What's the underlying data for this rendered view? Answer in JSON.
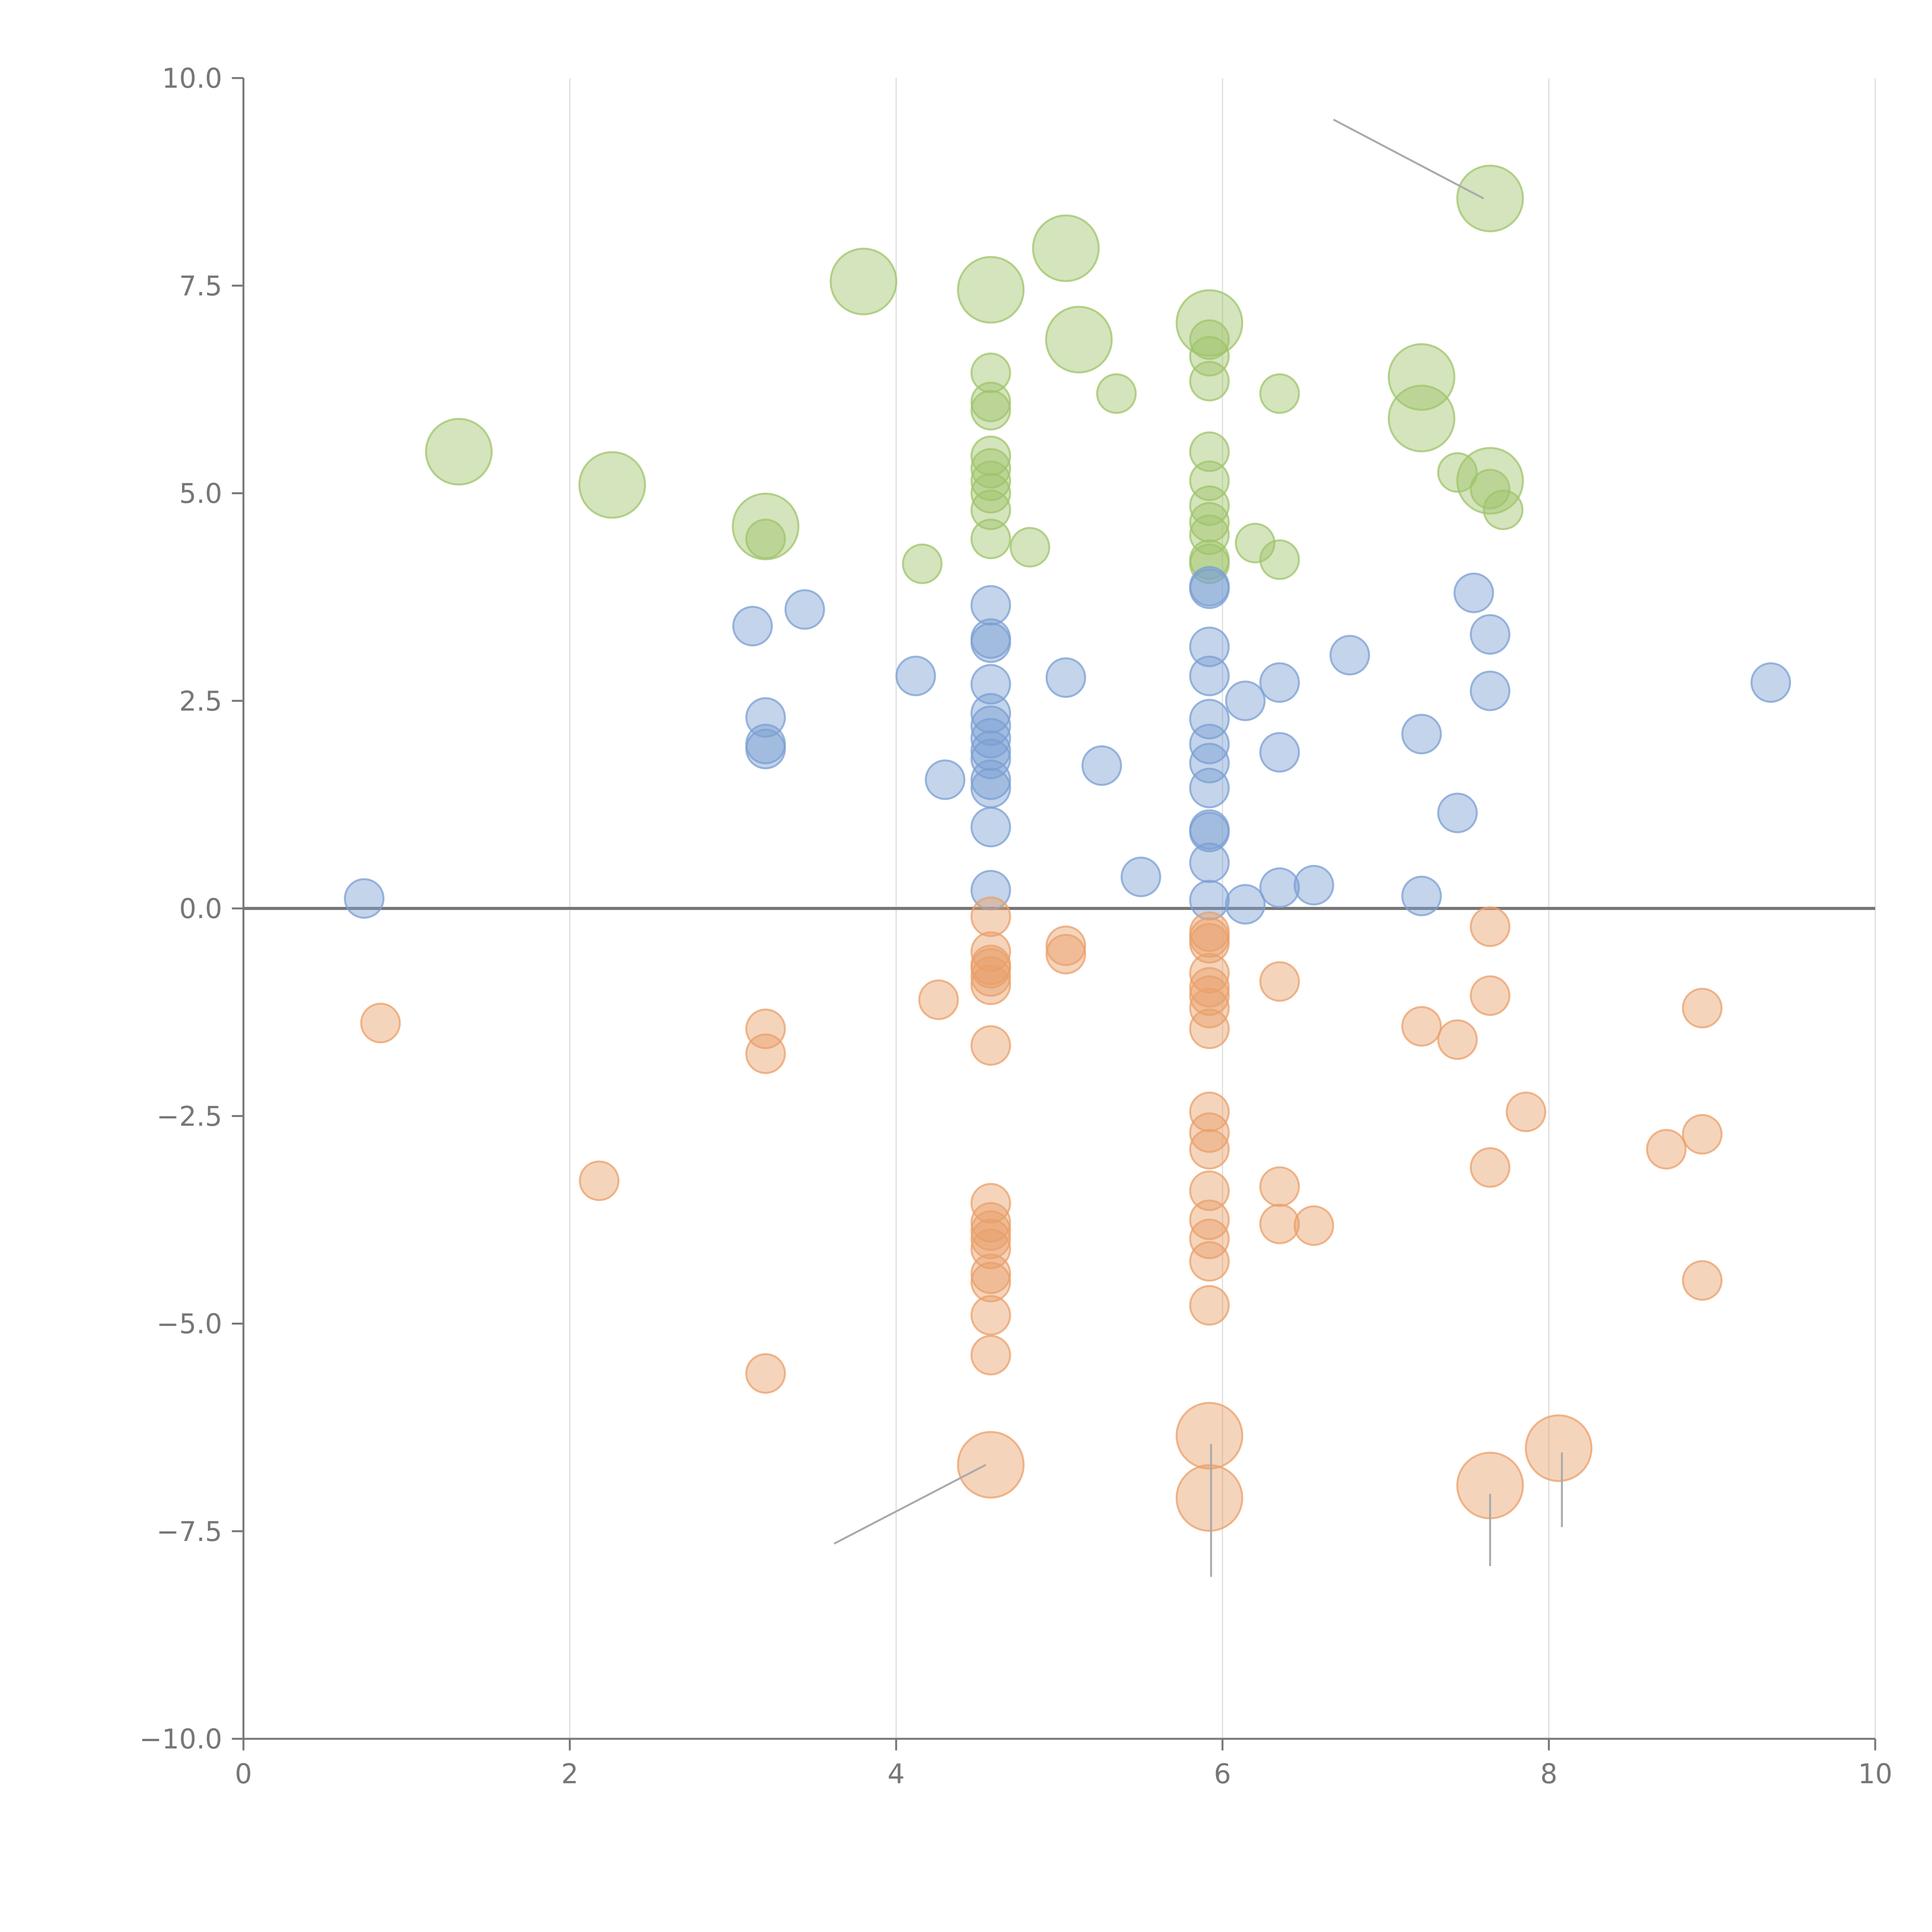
{
  "chart_data": {
    "type": "scatter",
    "title": "",
    "xlabel": "",
    "ylabel": "",
    "xlim": [
      0,
      10
    ],
    "ylim": [
      -10,
      10
    ],
    "x_ticks": [
      "0",
      "2",
      "4",
      "6",
      "8",
      "10"
    ],
    "y_ticks": [
      "10.0",
      "7.5",
      "5.0",
      "2.5",
      "0.0",
      "−2.5",
      "−5.0",
      "−7.5",
      "−10.0"
    ],
    "x_tick_values": [
      0,
      2,
      4,
      6,
      8,
      10
    ],
    "y_tick_values": [
      10,
      7.5,
      5,
      2.5,
      0,
      -2.5,
      -5,
      -7.5,
      -10
    ],
    "grid_x": true,
    "grid_y": false,
    "zero_line": true,
    "series": [
      {
        "name": "green",
        "color": "#9fc46a",
        "points": [
          {
            "x": 1.32,
            "y": 5.5,
            "size": 2
          },
          {
            "x": 2.26,
            "y": 5.1,
            "size": 2
          },
          {
            "x": 3.2,
            "y": 4.6,
            "size": 2
          },
          {
            "x": 3.8,
            "y": 7.55,
            "size": 2
          },
          {
            "x": 4.58,
            "y": 7.45,
            "size": 2
          },
          {
            "x": 5.04,
            "y": 7.95,
            "size": 2
          },
          {
            "x": 5.12,
            "y": 6.85,
            "size": 2
          },
          {
            "x": 5.92,
            "y": 7.05,
            "size": 2
          },
          {
            "x": 7.64,
            "y": 8.55,
            "size": 2
          },
          {
            "x": 7.22,
            "y": 6.4,
            "size": 2
          },
          {
            "x": 7.22,
            "y": 5.9,
            "size": 2
          },
          {
            "x": 7.64,
            "y": 5.15,
            "size": 2
          },
          {
            "x": 3.2,
            "y": 4.45,
            "size": 1
          },
          {
            "x": 4.16,
            "y": 4.15,
            "size": 1
          },
          {
            "x": 4.82,
            "y": 4.35,
            "size": 1
          },
          {
            "x": 4.58,
            "y": 6.45,
            "size": 1
          },
          {
            "x": 4.58,
            "y": 6.1,
            "size": 1
          },
          {
            "x": 4.58,
            "y": 6.0,
            "size": 1
          },
          {
            "x": 4.58,
            "y": 5.45,
            "size": 1
          },
          {
            "x": 4.58,
            "y": 5.3,
            "size": 1
          },
          {
            "x": 4.58,
            "y": 5.15,
            "size": 1
          },
          {
            "x": 4.58,
            "y": 5.0,
            "size": 1
          },
          {
            "x": 4.58,
            "y": 4.8,
            "size": 1
          },
          {
            "x": 4.58,
            "y": 4.45,
            "size": 1
          },
          {
            "x": 5.35,
            "y": 6.2,
            "size": 1
          },
          {
            "x": 5.92,
            "y": 6.85,
            "size": 1
          },
          {
            "x": 5.92,
            "y": 6.65,
            "size": 1
          },
          {
            "x": 5.92,
            "y": 6.35,
            "size": 1
          },
          {
            "x": 5.92,
            "y": 5.5,
            "size": 1
          },
          {
            "x": 5.92,
            "y": 5.15,
            "size": 1
          },
          {
            "x": 5.92,
            "y": 4.85,
            "size": 1
          },
          {
            "x": 5.92,
            "y": 4.65,
            "size": 1
          },
          {
            "x": 5.92,
            "y": 4.5,
            "size": 1
          },
          {
            "x": 5.92,
            "y": 4.2,
            "size": 1
          },
          {
            "x": 5.92,
            "y": 4.15,
            "size": 1
          },
          {
            "x": 6.2,
            "y": 4.4,
            "size": 1
          },
          {
            "x": 6.35,
            "y": 6.2,
            "size": 1
          },
          {
            "x": 6.35,
            "y": 4.2,
            "size": 1
          },
          {
            "x": 7.44,
            "y": 5.25,
            "size": 1
          },
          {
            "x": 7.64,
            "y": 5.05,
            "size": 1
          },
          {
            "x": 7.72,
            "y": 4.8,
            "size": 1
          }
        ]
      },
      {
        "name": "blue",
        "color": "#7b9fd3",
        "points": [
          {
            "x": 0.74,
            "y": 0.12,
            "size": 1
          },
          {
            "x": 3.12,
            "y": 3.4,
            "size": 1
          },
          {
            "x": 3.44,
            "y": 3.6,
            "size": 1
          },
          {
            "x": 3.2,
            "y": 2.3,
            "size": 1
          },
          {
            "x": 3.2,
            "y": 1.98,
            "size": 1
          },
          {
            "x": 3.2,
            "y": 1.92,
            "size": 1
          },
          {
            "x": 4.12,
            "y": 2.8,
            "size": 1
          },
          {
            "x": 4.3,
            "y": 1.55,
            "size": 1
          },
          {
            "x": 4.58,
            "y": 3.65,
            "size": 1
          },
          {
            "x": 4.58,
            "y": 3.25,
            "size": 1
          },
          {
            "x": 4.58,
            "y": 3.2,
            "size": 1
          },
          {
            "x": 4.58,
            "y": 2.7,
            "size": 1
          },
          {
            "x": 4.58,
            "y": 2.35,
            "size": 1
          },
          {
            "x": 4.58,
            "y": 2.2,
            "size": 1
          },
          {
            "x": 4.58,
            "y": 2.05,
            "size": 1
          },
          {
            "x": 4.58,
            "y": 1.9,
            "size": 1
          },
          {
            "x": 4.58,
            "y": 1.8,
            "size": 1
          },
          {
            "x": 4.58,
            "y": 1.55,
            "size": 1
          },
          {
            "x": 4.58,
            "y": 1.45,
            "size": 1
          },
          {
            "x": 4.58,
            "y": 0.98,
            "size": 1
          },
          {
            "x": 4.58,
            "y": 0.22,
            "size": 1
          },
          {
            "x": 5.04,
            "y": 2.78,
            "size": 1
          },
          {
            "x": 5.26,
            "y": 1.72,
            "size": 1
          },
          {
            "x": 5.5,
            "y": 0.38,
            "size": 1
          },
          {
            "x": 5.92,
            "y": 3.85,
            "size": 1
          },
          {
            "x": 5.92,
            "y": 3.88,
            "size": 1
          },
          {
            "x": 5.92,
            "y": 3.15,
            "size": 1
          },
          {
            "x": 5.92,
            "y": 2.8,
            "size": 1
          },
          {
            "x": 5.92,
            "y": 2.28,
            "size": 1
          },
          {
            "x": 5.92,
            "y": 1.98,
            "size": 1
          },
          {
            "x": 5.92,
            "y": 1.75,
            "size": 1
          },
          {
            "x": 5.92,
            "y": 1.45,
            "size": 1
          },
          {
            "x": 5.92,
            "y": 0.95,
            "size": 1
          },
          {
            "x": 5.92,
            "y": 0.92,
            "size": 1
          },
          {
            "x": 5.92,
            "y": 0.55,
            "size": 1
          },
          {
            "x": 5.92,
            "y": 0.1,
            "size": 1
          },
          {
            "x": 6.14,
            "y": 2.5,
            "size": 1
          },
          {
            "x": 6.14,
            "y": 0.05,
            "size": 1
          },
          {
            "x": 6.35,
            "y": 2.72,
            "size": 1
          },
          {
            "x": 6.35,
            "y": 1.88,
            "size": 1
          },
          {
            "x": 6.35,
            "y": 0.25,
            "size": 1
          },
          {
            "x": 6.56,
            "y": 0.28,
            "size": 1
          },
          {
            "x": 6.78,
            "y": 3.05,
            "size": 1
          },
          {
            "x": 7.22,
            "y": 2.1,
            "size": 1
          },
          {
            "x": 7.22,
            "y": 0.15,
            "size": 1
          },
          {
            "x": 7.44,
            "y": 1.15,
            "size": 1
          },
          {
            "x": 7.54,
            "y": 3.8,
            "size": 1
          },
          {
            "x": 7.64,
            "y": 3.3,
            "size": 1
          },
          {
            "x": 7.64,
            "y": 2.62,
            "size": 1
          },
          {
            "x": 9.36,
            "y": 2.72,
            "size": 1
          }
        ]
      },
      {
        "name": "orange",
        "color": "#e9a06a",
        "points": [
          {
            "x": 0.84,
            "y": -1.38,
            "size": 1
          },
          {
            "x": 2.18,
            "y": -3.28,
            "size": 1
          },
          {
            "x": 3.2,
            "y": -1.45,
            "size": 1
          },
          {
            "x": 3.2,
            "y": -1.75,
            "size": 1
          },
          {
            "x": 3.2,
            "y": -5.6,
            "size": 1
          },
          {
            "x": 4.26,
            "y": -1.1,
            "size": 1
          },
          {
            "x": 4.58,
            "y": -0.1,
            "size": 1
          },
          {
            "x": 4.58,
            "y": -0.52,
            "size": 1
          },
          {
            "x": 4.58,
            "y": -0.68,
            "size": 1
          },
          {
            "x": 4.58,
            "y": -0.72,
            "size": 1
          },
          {
            "x": 4.58,
            "y": -0.82,
            "size": 1
          },
          {
            "x": 4.58,
            "y": -0.92,
            "size": 1
          },
          {
            "x": 4.58,
            "y": -1.65,
            "size": 1
          },
          {
            "x": 4.58,
            "y": -3.55,
            "size": 1
          },
          {
            "x": 4.58,
            "y": -3.78,
            "size": 1
          },
          {
            "x": 4.58,
            "y": -3.88,
            "size": 1
          },
          {
            "x": 4.58,
            "y": -3.98,
            "size": 1
          },
          {
            "x": 4.58,
            "y": -4.1,
            "size": 1
          },
          {
            "x": 4.58,
            "y": -4.4,
            "size": 1
          },
          {
            "x": 4.58,
            "y": -4.5,
            "size": 1
          },
          {
            "x": 4.58,
            "y": -4.9,
            "size": 1
          },
          {
            "x": 4.58,
            "y": -5.38,
            "size": 1
          },
          {
            "x": 5.04,
            "y": -0.45,
            "size": 1
          },
          {
            "x": 5.04,
            "y": -0.55,
            "size": 1
          },
          {
            "x": 5.92,
            "y": -0.28,
            "size": 1
          },
          {
            "x": 5.92,
            "y": -0.35,
            "size": 1
          },
          {
            "x": 5.92,
            "y": -0.42,
            "size": 1
          },
          {
            "x": 5.92,
            "y": -0.78,
            "size": 1
          },
          {
            "x": 5.92,
            "y": -0.95,
            "size": 1
          },
          {
            "x": 5.92,
            "y": -1.05,
            "size": 1
          },
          {
            "x": 5.92,
            "y": -1.2,
            "size": 1
          },
          {
            "x": 5.92,
            "y": -1.45,
            "size": 1
          },
          {
            "x": 5.92,
            "y": -2.45,
            "size": 1
          },
          {
            "x": 5.92,
            "y": -2.7,
            "size": 1
          },
          {
            "x": 5.92,
            "y": -2.9,
            "size": 1
          },
          {
            "x": 5.92,
            "y": -3.4,
            "size": 1
          },
          {
            "x": 5.92,
            "y": -3.75,
            "size": 1
          },
          {
            "x": 5.92,
            "y": -3.98,
            "size": 1
          },
          {
            "x": 5.92,
            "y": -4.25,
            "size": 1
          },
          {
            "x": 5.92,
            "y": -4.78,
            "size": 1
          },
          {
            "x": 6.35,
            "y": -0.88,
            "size": 1
          },
          {
            "x": 6.35,
            "y": -3.35,
            "size": 1
          },
          {
            "x": 6.35,
            "y": -3.8,
            "size": 1
          },
          {
            "x": 6.56,
            "y": -3.82,
            "size": 1
          },
          {
            "x": 7.22,
            "y": -1.42,
            "size": 1
          },
          {
            "x": 7.44,
            "y": -1.58,
            "size": 1
          },
          {
            "x": 7.64,
            "y": -0.22,
            "size": 1
          },
          {
            "x": 7.64,
            "y": -1.05,
            "size": 1
          },
          {
            "x": 7.64,
            "y": -3.12,
            "size": 1
          },
          {
            "x": 7.86,
            "y": -2.45,
            "size": 1
          },
          {
            "x": 8.72,
            "y": -2.9,
            "size": 1
          },
          {
            "x": 8.94,
            "y": -1.2,
            "size": 1
          },
          {
            "x": 8.94,
            "y": -2.72,
            "size": 1
          },
          {
            "x": 8.94,
            "y": -4.48,
            "size": 1
          },
          {
            "x": 4.58,
            "y": -6.7,
            "size": 2
          },
          {
            "x": 5.92,
            "y": -6.35,
            "size": 2
          },
          {
            "x": 5.92,
            "y": -7.1,
            "size": 2
          },
          {
            "x": 7.64,
            "y": -6.95,
            "size": 2
          },
          {
            "x": 8.06,
            "y": -6.5,
            "size": 2
          }
        ]
      }
    ],
    "leader_lines": [
      {
        "x1": 6.68,
        "y1": 9.5,
        "x2": 7.6,
        "y2": 8.55
      },
      {
        "x1": 3.62,
        "y1": -7.65,
        "x2": 4.55,
        "y2": -6.7
      },
      {
        "x1": 5.93,
        "y1": -6.45,
        "x2": 5.93,
        "y2": -8.05
      },
      {
        "x1": 7.64,
        "y1": -7.05,
        "x2": 7.64,
        "y2": -7.92
      },
      {
        "x1": 8.08,
        "y1": -6.55,
        "x2": 8.08,
        "y2": -7.45
      }
    ]
  }
}
